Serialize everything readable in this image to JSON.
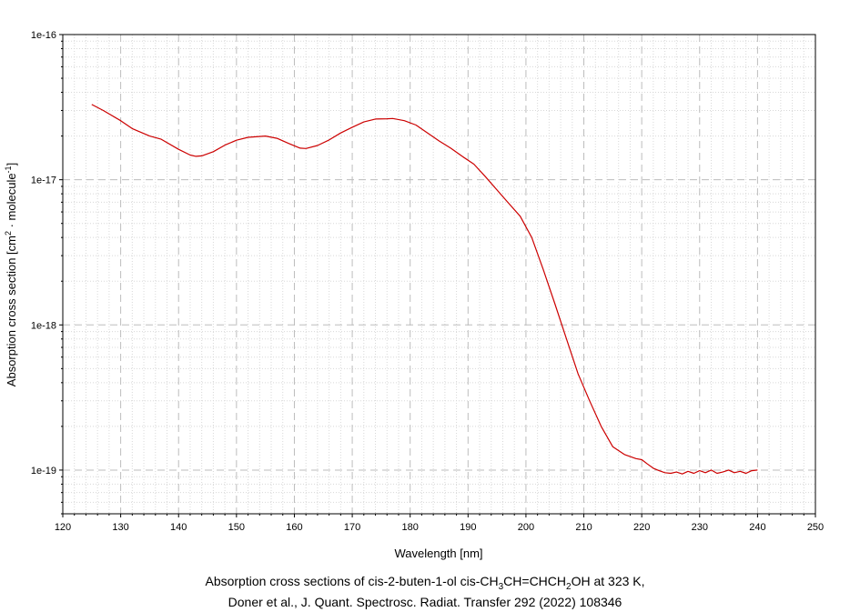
{
  "chart_data": {
    "type": "line",
    "xlabel": "Wavelength [nm]",
    "ylabel_parts": [
      "Absorption cross section [cm",
      "2",
      " · molecule",
      "-1",
      "]"
    ],
    "xlim": [
      120,
      250
    ],
    "ylim": [
      5e-20,
      1e-16
    ],
    "yscale": "log",
    "grid": true,
    "x_ticks": [
      "120",
      "130",
      "140",
      "150",
      "160",
      "170",
      "180",
      "190",
      "200",
      "210",
      "220",
      "230",
      "240",
      "250"
    ],
    "y_ticks": [
      {
        "value": 1e-16,
        "label": "1e-16"
      },
      {
        "value": 1e-17,
        "label": "1e-17"
      },
      {
        "value": 1e-18,
        "label": "1e-18"
      },
      {
        "value": 1e-19,
        "label": "1e-19"
      }
    ],
    "series": [
      {
        "color": "#cc0000",
        "x": [
          125,
          127,
          130,
          132,
          135,
          137,
          140,
          142,
          143,
          144,
          146,
          148,
          150,
          152,
          155,
          157,
          159,
          161,
          162,
          164,
          166,
          168,
          170,
          172,
          174,
          176,
          177,
          179,
          181,
          183,
          185,
          187,
          189,
          191,
          193,
          195,
          197,
          199,
          201,
          203,
          205,
          207,
          209,
          211,
          213,
          215,
          217,
          219,
          220,
          221,
          222,
          223,
          224,
          225,
          226,
          227,
          228,
          229,
          230,
          231,
          232,
          233,
          234,
          235,
          236,
          237,
          238,
          239,
          240
        ],
        "y": [
          3.3e-17,
          3e-17,
          2.55e-17,
          2.25e-17,
          2e-17,
          1.9e-17,
          1.62e-17,
          1.48e-17,
          1.45e-17,
          1.46e-17,
          1.56e-17,
          1.73e-17,
          1.87e-17,
          1.96e-17,
          2e-17,
          1.93e-17,
          1.78e-17,
          1.65e-17,
          1.64e-17,
          1.72e-17,
          1.88e-17,
          2.1e-17,
          2.3e-17,
          2.5e-17,
          2.62e-17,
          2.63e-17,
          2.64e-17,
          2.55e-17,
          2.38e-17,
          2.1e-17,
          1.85e-17,
          1.65e-17,
          1.45e-17,
          1.28e-17,
          1.05e-17,
          8.5e-18,
          6.9e-18,
          5.6e-18,
          4e-18,
          2.4e-18,
          1.4e-18,
          8e-19,
          4.6e-19,
          3e-19,
          2e-19,
          1.45e-19,
          1.28e-19,
          1.2e-19,
          1.18e-19,
          1.1e-19,
          1.03e-19,
          9.9e-20,
          9.6e-20,
          9.5e-20,
          9.7e-20,
          9.4e-20,
          9.8e-20,
          9.5e-20,
          9.9e-20,
          9.6e-20,
          1e-19,
          9.5e-20,
          9.7e-20,
          1e-19,
          9.6e-20,
          9.8e-20,
          9.5e-20,
          9.9e-20,
          1e-19
        ]
      }
    ]
  },
  "caption": {
    "line1_parts": [
      "Absorption cross sections of cis-2-buten-1-ol cis-CH",
      "3",
      "CH=CHCH",
      "2",
      "OH at 323 K,"
    ],
    "line2": "Doner et al., J. Quant. Spectrosc. Radiat. Transfer 292 (2022) 108346"
  }
}
